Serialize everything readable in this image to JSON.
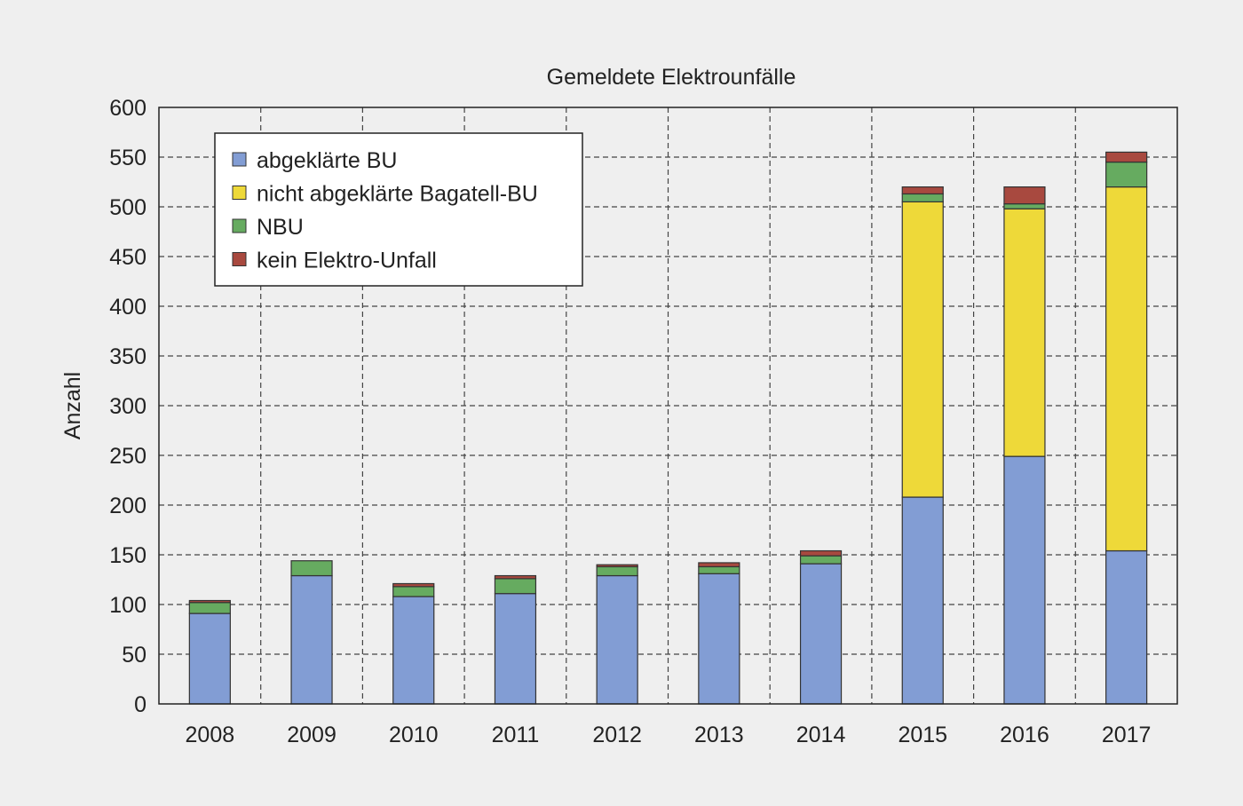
{
  "chart_data": {
    "type": "bar",
    "stacked": true,
    "title": "Gemeldete Elektrounfälle",
    "xlabel": "",
    "ylabel": "Anzahl",
    "ylim": [
      0,
      600
    ],
    "yticks": [
      0,
      50,
      100,
      150,
      200,
      250,
      300,
      350,
      400,
      450,
      500,
      550,
      600
    ],
    "grid": true,
    "legend_placement": "top-left",
    "categories": [
      "2008",
      "2009",
      "2010",
      "2011",
      "2012",
      "2013",
      "2014",
      "2015",
      "2016",
      "2017"
    ],
    "series": [
      {
        "name": "abgeklärte BU",
        "color": "#829dd4",
        "values": [
          91,
          129,
          108,
          111,
          129,
          131,
          141,
          208,
          249,
          154
        ]
      },
      {
        "name": "nicht abgeklärte Bagatell-BU",
        "color": "#eed939",
        "values": [
          0,
          0,
          0,
          0,
          0,
          0,
          0,
          297,
          249,
          366
        ]
      },
      {
        "name": "NBU",
        "color": "#66ab60",
        "values": [
          11,
          15,
          10,
          15,
          9,
          7,
          8,
          8,
          5,
          25
        ]
      },
      {
        "name": "kein Elektro-Unfall",
        "color": "#a8493f",
        "values": [
          2,
          0,
          3,
          3,
          2,
          4,
          5,
          7,
          17,
          10
        ]
      }
    ]
  }
}
